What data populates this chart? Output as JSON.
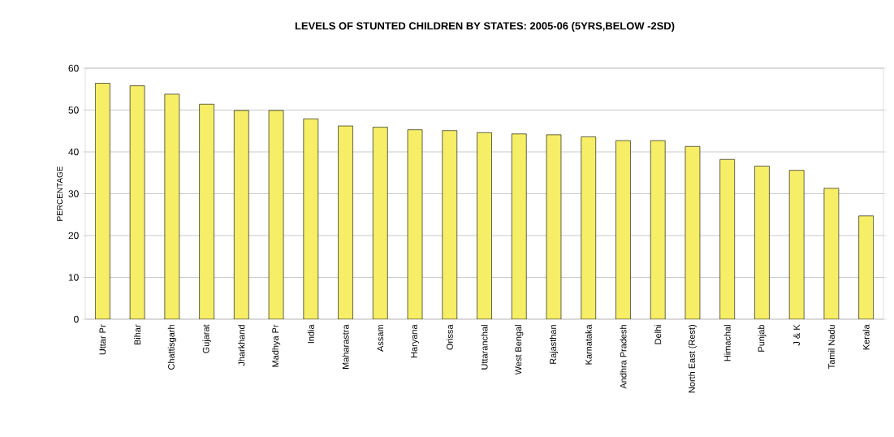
{
  "chart_data": {
    "type": "bar",
    "title": "LEVELS OF STUNTED CHILDREN BY STATES: 2005-06 (5YRS,BELOW -2SD)",
    "ylabel": "PERCENTAGE",
    "categories": [
      "Uttar Pr",
      "Bihar",
      "Chattisgarh",
      "Gujarat",
      "Jharkhand",
      "Madhya Pr",
      "India",
      "Maharastra",
      "Assam",
      "Haryana",
      "Orissa",
      "Uttaranchal",
      "West Bengal",
      "Rajasthan",
      "Karnataka",
      "Andhra Pradesh",
      "Delhi",
      "North East (Rest)",
      "Himachal",
      "Punjab",
      "J & K",
      "Tamil Nadu",
      "Kerala"
    ],
    "values": [
      56.4,
      55.8,
      53.8,
      51.4,
      49.9,
      49.9,
      47.9,
      46.2,
      45.9,
      45.3,
      45.1,
      44.6,
      44.3,
      44.1,
      43.6,
      42.7,
      42.7,
      41.3,
      38.2,
      36.6,
      35.6,
      31.3,
      24.7
    ],
    "color": "#f6ee66",
    "ylim": [
      0,
      60
    ],
    "yticks": [
      0,
      10,
      20,
      30,
      40,
      50,
      60
    ],
    "grid": "y"
  }
}
